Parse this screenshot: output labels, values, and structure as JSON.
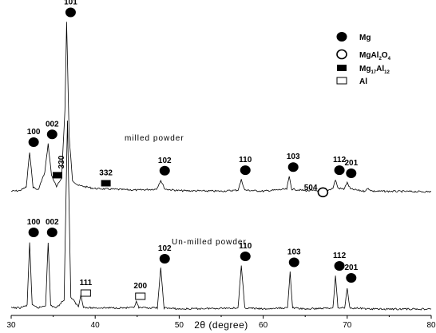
{
  "chart_data": {
    "type": "line",
    "xlabel": "2θ (degree)",
    "xlim": [
      30,
      80
    ],
    "x_ticks": [
      30,
      40,
      50,
      60,
      70,
      80
    ],
    "y_ticks_shown": false,
    "legend": {
      "placement": "top-right",
      "entries": [
        {
          "marker": "filled-circle",
          "label": "Mg"
        },
        {
          "marker": "open-circle",
          "label": "MgAl",
          "sub1": "2",
          "mid": "O",
          "sub2": "4"
        },
        {
          "marker": "filled-square",
          "label": "Mg",
          "sub1": "17",
          "mid": "Al",
          "sub2": "12"
        },
        {
          "marker": "open-square",
          "label": "Al"
        }
      ]
    },
    "series": [
      {
        "name": "milled powder",
        "baseline": 0.0,
        "x": [
          30,
          31,
          31.8,
          32.2,
          32.6,
          33.2,
          34.0,
          34.4,
          34.8,
          35.4,
          36.0,
          36.4,
          36.6,
          36.9,
          37.3,
          38.0,
          40.0,
          45.0,
          47.3,
          47.8,
          48.3,
          50.0,
          55.0,
          57.0,
          57.4,
          57.8,
          60.0,
          62.8,
          63.1,
          63.4,
          65.0,
          67.0,
          67.3,
          67.6,
          68.3,
          68.6,
          68.9,
          69.6,
          70.0,
          70.4,
          72.0,
          72.5,
          73.0,
          80
        ],
        "y": [
          4,
          5,
          12,
          80,
          12,
          6,
          40,
          95,
          35,
          12,
          30,
          160,
          330,
          110,
          25,
          15,
          9,
          6,
          8,
          25,
          8,
          5,
          4,
          6,
          26,
          6,
          4,
          8,
          32,
          8,
          5,
          5,
          8,
          5,
          10,
          26,
          10,
          8,
          20,
          8,
          4,
          9,
          4,
          3
        ]
      },
      {
        "name": "Un-milled powder",
        "baseline": 0.0,
        "x": [
          30,
          31,
          31.9,
          32.2,
          32.5,
          33.2,
          34.1,
          34.4,
          34.7,
          35.4,
          36.3,
          36.7,
          37.1,
          38.0,
          38.3,
          38.6,
          38.9,
          40.0,
          44.6,
          44.9,
          45.2,
          47.4,
          47.8,
          48.2,
          50.0,
          57.0,
          57.4,
          57.8,
          60.0,
          62.9,
          63.2,
          63.5,
          65.0,
          68.3,
          68.6,
          68.9,
          69.7,
          70.0,
          70.3,
          73.0,
          80
        ],
        "y": [
          3,
          3,
          5,
          58,
          5,
          3,
          5,
          58,
          5,
          3,
          10,
          160,
          12,
          4,
          14,
          4,
          3,
          3,
          3,
          8,
          3,
          3,
          36,
          3,
          2,
          3,
          38,
          3,
          2,
          3,
          33,
          3,
          2,
          3,
          30,
          3,
          3,
          20,
          3,
          2,
          2
        ]
      }
    ],
    "annotations": [
      {
        "text": "100",
        "series": "milled powder",
        "x": 32.2,
        "marker": "filled-circle"
      },
      {
        "text": "002",
        "series": "milled powder",
        "x": 34.4,
        "marker": "filled-circle"
      },
      {
        "text": "101",
        "series": "milled powder",
        "x": 36.6,
        "marker": "filled-circle"
      },
      {
        "text": "330",
        "series": "milled powder",
        "x": 35.8,
        "marker": "filled-square",
        "rotated": true
      },
      {
        "text": "332",
        "series": "milled powder",
        "x": 40.8,
        "marker": "filled-square"
      },
      {
        "text": "102",
        "series": "milled powder",
        "x": 47.8,
        "marker": "filled-circle"
      },
      {
        "text": "110",
        "series": "milled powder",
        "x": 57.4,
        "marker": "filled-circle"
      },
      {
        "text": "103",
        "series": "milled powder",
        "x": 63.1,
        "marker": "filled-circle"
      },
      {
        "text": "504",
        "series": "milled powder",
        "x": 67.3,
        "marker": "open-circle"
      },
      {
        "text": "112",
        "series": "milled powder",
        "x": 68.6,
        "marker": "filled-circle"
      },
      {
        "text": "201",
        "series": "milled powder",
        "x": 70.0,
        "marker": "filled-circle"
      },
      {
        "text": "100",
        "series": "Un-milled powder",
        "x": 32.2,
        "marker": "filled-circle"
      },
      {
        "text": "002",
        "series": "Un-milled powder",
        "x": 34.4,
        "marker": "filled-circle"
      },
      {
        "text": "111",
        "series": "Un-milled powder",
        "x": 38.4,
        "marker": "open-square"
      },
      {
        "text": "200",
        "series": "Un-milled powder",
        "x": 44.9,
        "marker": "open-square"
      },
      {
        "text": "102",
        "series": "Un-milled powder",
        "x": 47.8,
        "marker": "filled-circle"
      },
      {
        "text": "110",
        "series": "Un-milled powder",
        "x": 57.4,
        "marker": "filled-circle"
      },
      {
        "text": "103",
        "series": "Un-milled powder",
        "x": 63.2,
        "marker": "filled-circle"
      },
      {
        "text": "112",
        "series": "Un-milled powder",
        "x": 68.6,
        "marker": "filled-circle"
      },
      {
        "text": "201",
        "series": "Un-milled powder",
        "x": 70.0,
        "marker": "filled-circle"
      }
    ]
  }
}
